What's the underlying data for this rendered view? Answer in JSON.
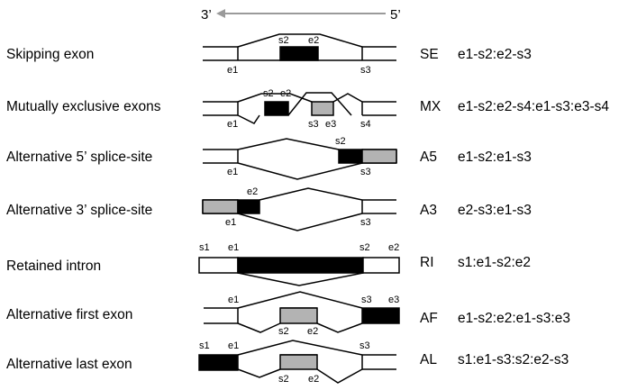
{
  "header": {
    "left_end": "3’",
    "right_end": "5’"
  },
  "rows": [
    {
      "id": "skipping-exon",
      "label": "Skipping exon",
      "abbr": "SE",
      "code": "e1-s2:e2-s3",
      "sites": [
        "s2",
        "e2",
        "e1",
        "s3"
      ]
    },
    {
      "id": "mutually-exclusive",
      "label": "Mutually exclusive exons",
      "abbr": "MX",
      "code": "e1-s2:e2-s4:e1-s3:e3-s4",
      "sites": [
        "s2",
        "e2",
        "e1",
        "s3",
        "e3",
        "s4"
      ]
    },
    {
      "id": "alt-5-splice",
      "label": "Alternative 5’ splice-site",
      "abbr": "A5",
      "code": "e1-s2:e1-s3",
      "sites": [
        "s2",
        "e1",
        "s3"
      ]
    },
    {
      "id": "alt-3-splice",
      "label": "Alternative 3’ splice-site",
      "abbr": "A3",
      "code": "e2-s3:e1-s3",
      "sites": [
        "e2",
        "e1",
        "s3"
      ]
    },
    {
      "id": "retained-intron",
      "label": "Retained intron",
      "abbr": "RI",
      "code": "s1:e1-s2:e2",
      "sites": [
        "s1",
        "e1",
        "s2",
        "e2"
      ]
    },
    {
      "id": "alt-first-exon",
      "label": "Alternative first exon",
      "abbr": "AF",
      "code": "e1-s2:e2:e1-s3:e3",
      "sites": [
        "e1",
        "s3",
        "e3",
        "s2",
        "e2"
      ]
    },
    {
      "id": "alt-last-exon",
      "label": "Alternative last exon",
      "abbr": "AL",
      "code": "s1:e1-s3:s2:e2-s3",
      "sites": [
        "s1",
        "e1",
        "s3",
        "s2",
        "e2"
      ]
    }
  ],
  "colors": {
    "constitutive": "#000000",
    "alternative": "#b3b3b3",
    "arrow": "#9a9a9a",
    "line": "#000000"
  }
}
